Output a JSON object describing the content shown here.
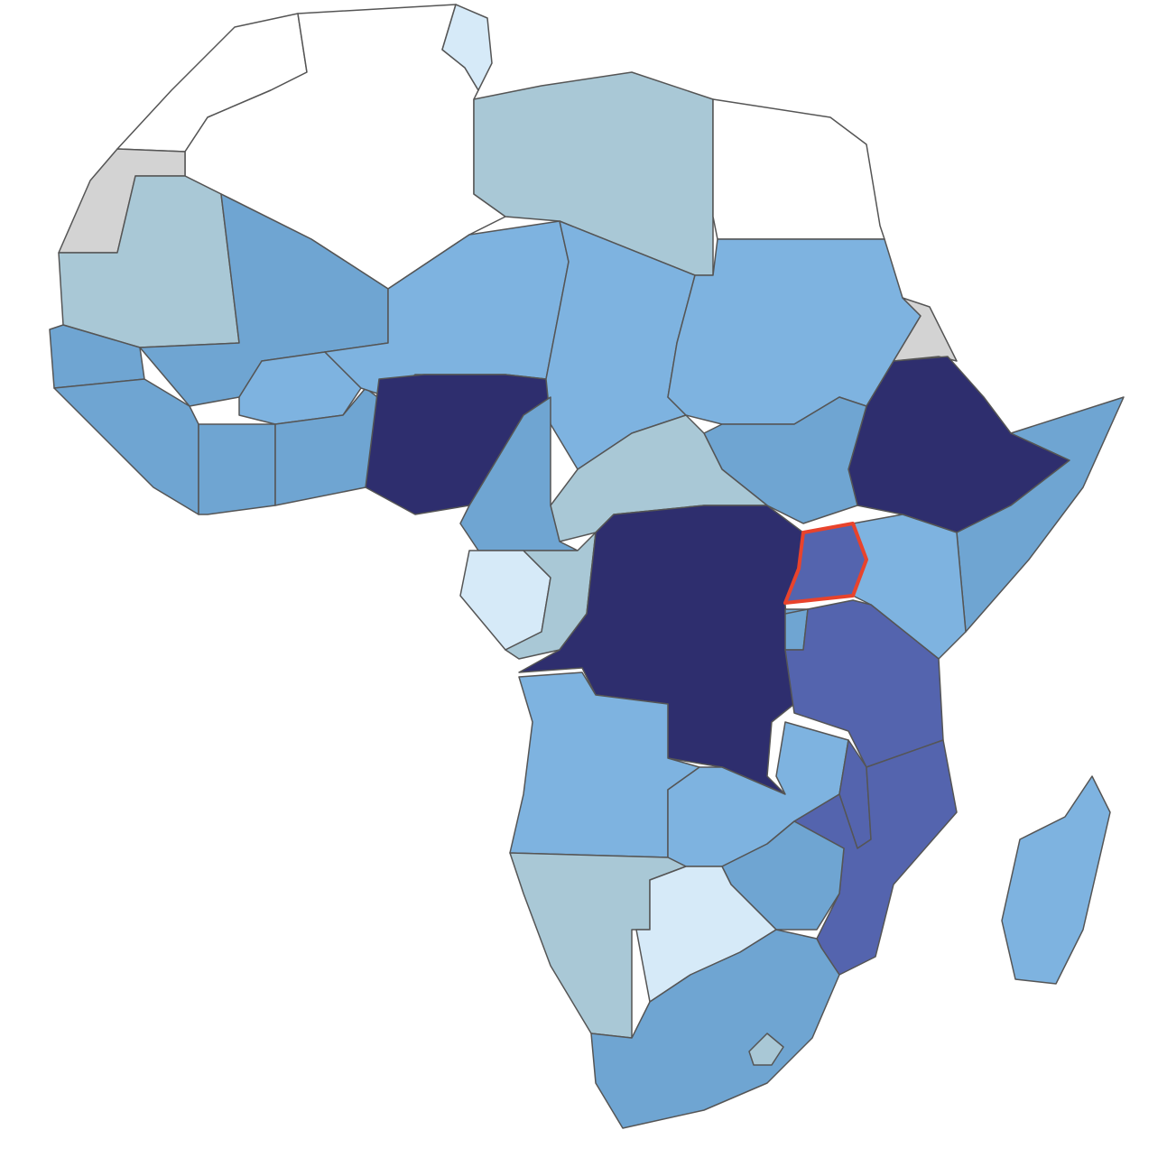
{
  "regions": [
    {
      "fill": "#ffffff"
    },
    {
      "fill": "#ffffff"
    },
    {
      "fill": "#d3d3d3"
    },
    {
      "fill": "#a9c8d6"
    },
    {
      "fill": "#6fa5d2"
    },
    {
      "fill": "#6fa5d2"
    },
    {
      "fill": "#6fa5d2"
    },
    {
      "fill": "#6fa5d2"
    },
    {
      "fill": "#7eb3e0"
    },
    {
      "fill": "#6fa5d2"
    },
    {
      "fill": "#7eb3e0"
    },
    {
      "fill": "#2e2e6e"
    },
    {
      "fill": "#a9c8d6"
    },
    {
      "fill": "#d6eaf8"
    },
    {
      "fill": "#ffffff"
    },
    {
      "fill": "#7eb3e0"
    },
    {
      "fill": "#7eb3e0"
    },
    {
      "fill": "#d3d3d3"
    },
    {
      "fill": "#2e2e6e"
    },
    {
      "fill": "#6fa5d2"
    },
    {
      "fill": "#6fa5d2"
    },
    {
      "fill": "#a9c8d6"
    },
    {
      "fill": "#6fa5d2"
    },
    {
      "fill": "#d6eaf8"
    },
    {
      "fill": "#a9c8d6"
    },
    {
      "fill": "#2e2e6e"
    },
    {
      "fill": "#5464ae",
      "outline": "#e8432c"
    },
    {
      "fill": "#7eb3e0"
    },
    {
      "fill": "#6fa5d2"
    },
    {
      "fill": "#5464ae"
    },
    {
      "fill": "#7eb3e0"
    },
    {
      "fill": "#7eb3e0"
    },
    {
      "fill": "#5464ae"
    },
    {
      "fill": "#5464ae"
    },
    {
      "fill": "#6fa5d2"
    },
    {
      "fill": "#a9c8d6"
    },
    {
      "fill": "#d6eaf8"
    },
    {
      "fill": "#6fa5d2"
    },
    {
      "fill": "#a9c8d6"
    },
    {
      "fill": "#7eb3e0"
    }
  ]
}
